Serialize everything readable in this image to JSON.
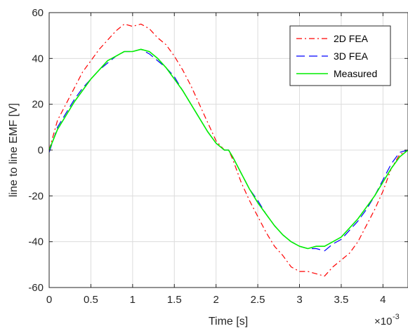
{
  "chart_data": {
    "type": "line",
    "xlabel": "Time [s]",
    "ylabel": "line to line EMF [V]",
    "x_multiplier_label": "×10",
    "x_multiplier_exponent": "-3",
    "xlim": [
      0,
      4.3
    ],
    "ylim": [
      -60,
      60
    ],
    "x_ticks": [
      0,
      0.5,
      1,
      1.5,
      2,
      2.5,
      3,
      3.5,
      4
    ],
    "x_tick_labels": [
      "0",
      "0.5",
      "1",
      "1.5",
      "2",
      "2.5",
      "3",
      "3.5",
      "4"
    ],
    "y_ticks": [
      -60,
      -40,
      -20,
      0,
      20,
      40,
      60
    ],
    "y_tick_labels": [
      "-60",
      "-40",
      "-20",
      "0",
      "20",
      "40",
      "60"
    ],
    "grid": true,
    "legend_position": "top-right",
    "series": [
      {
        "name": "2D FEA",
        "color": "#ff0000",
        "dash": "dash-dot",
        "x": [
          0,
          0.1,
          0.2,
          0.3,
          0.4,
          0.5,
          0.6,
          0.7,
          0.8,
          0.9,
          1.0,
          1.1,
          1.2,
          1.3,
          1.4,
          1.5,
          1.6,
          1.7,
          1.8,
          1.9,
          2.0,
          2.1,
          2.15,
          2.2,
          2.3,
          2.4,
          2.5,
          2.6,
          2.7,
          2.8,
          2.9,
          3.0,
          3.1,
          3.2,
          3.3,
          3.4,
          3.5,
          3.6,
          3.7,
          3.8,
          3.9,
          4.0,
          4.1,
          4.2,
          4.3
        ],
        "y": [
          0,
          13,
          20,
          27,
          34,
          39,
          44,
          48,
          52,
          55,
          54,
          55,
          53,
          49,
          46,
          41,
          35,
          28,
          20,
          12,
          4,
          0,
          0,
          -4,
          -14,
          -22,
          -29,
          -36,
          -42,
          -46,
          -51,
          -53,
          -53,
          -54,
          -55,
          -51,
          -48,
          -45,
          -40,
          -33,
          -26,
          -18,
          -8,
          -2,
          0
        ]
      },
      {
        "name": "3D FEA",
        "color": "#0000ff",
        "dash": "dashed",
        "x": [
          0,
          0.1,
          0.2,
          0.3,
          0.4,
          0.5,
          0.6,
          0.7,
          0.8,
          0.9,
          1.0,
          1.1,
          1.2,
          1.3,
          1.4,
          1.5,
          1.6,
          1.7,
          1.8,
          1.9,
          2.0,
          2.1,
          2.15,
          2.2,
          2.3,
          2.4,
          2.5,
          2.6,
          2.7,
          2.8,
          2.9,
          3.0,
          3.1,
          3.2,
          3.3,
          3.4,
          3.5,
          3.6,
          3.7,
          3.8,
          3.9,
          4.0,
          4.1,
          4.2,
          4.3
        ],
        "y": [
          -1,
          10,
          16,
          22,
          27,
          31,
          35,
          38,
          41,
          43,
          43,
          44,
          42,
          39,
          36,
          32,
          26,
          20,
          14,
          8,
          3,
          0,
          0,
          -3,
          -10,
          -17,
          -22,
          -28,
          -33,
          -37,
          -40,
          -42,
          -43,
          -43,
          -44,
          -41,
          -39,
          -35,
          -31,
          -26,
          -20,
          -13,
          -6,
          -1,
          0
        ]
      },
      {
        "name": "Measured",
        "color": "#00ee00",
        "dash": "solid",
        "x": [
          0,
          0.1,
          0.2,
          0.3,
          0.4,
          0.5,
          0.6,
          0.7,
          0.8,
          0.9,
          1.0,
          1.1,
          1.2,
          1.3,
          1.4,
          1.5,
          1.6,
          1.7,
          1.8,
          1.9,
          2.0,
          2.1,
          2.15,
          2.2,
          2.3,
          2.4,
          2.5,
          2.6,
          2.7,
          2.8,
          2.9,
          3.0,
          3.1,
          3.2,
          3.3,
          3.4,
          3.5,
          3.6,
          3.7,
          3.8,
          3.9,
          4.0,
          4.1,
          4.2,
          4.3
        ],
        "y": [
          0,
          9,
          15,
          21,
          26,
          31,
          35,
          39,
          41,
          43,
          43,
          44,
          43,
          40,
          36,
          31,
          26,
          20,
          14,
          8,
          3,
          0,
          0,
          -3,
          -10,
          -17,
          -23,
          -28,
          -33,
          -37,
          -40,
          -42,
          -43,
          -42,
          -42,
          -40,
          -38,
          -34,
          -30,
          -25,
          -20,
          -14,
          -8,
          -3,
          0
        ]
      }
    ]
  }
}
